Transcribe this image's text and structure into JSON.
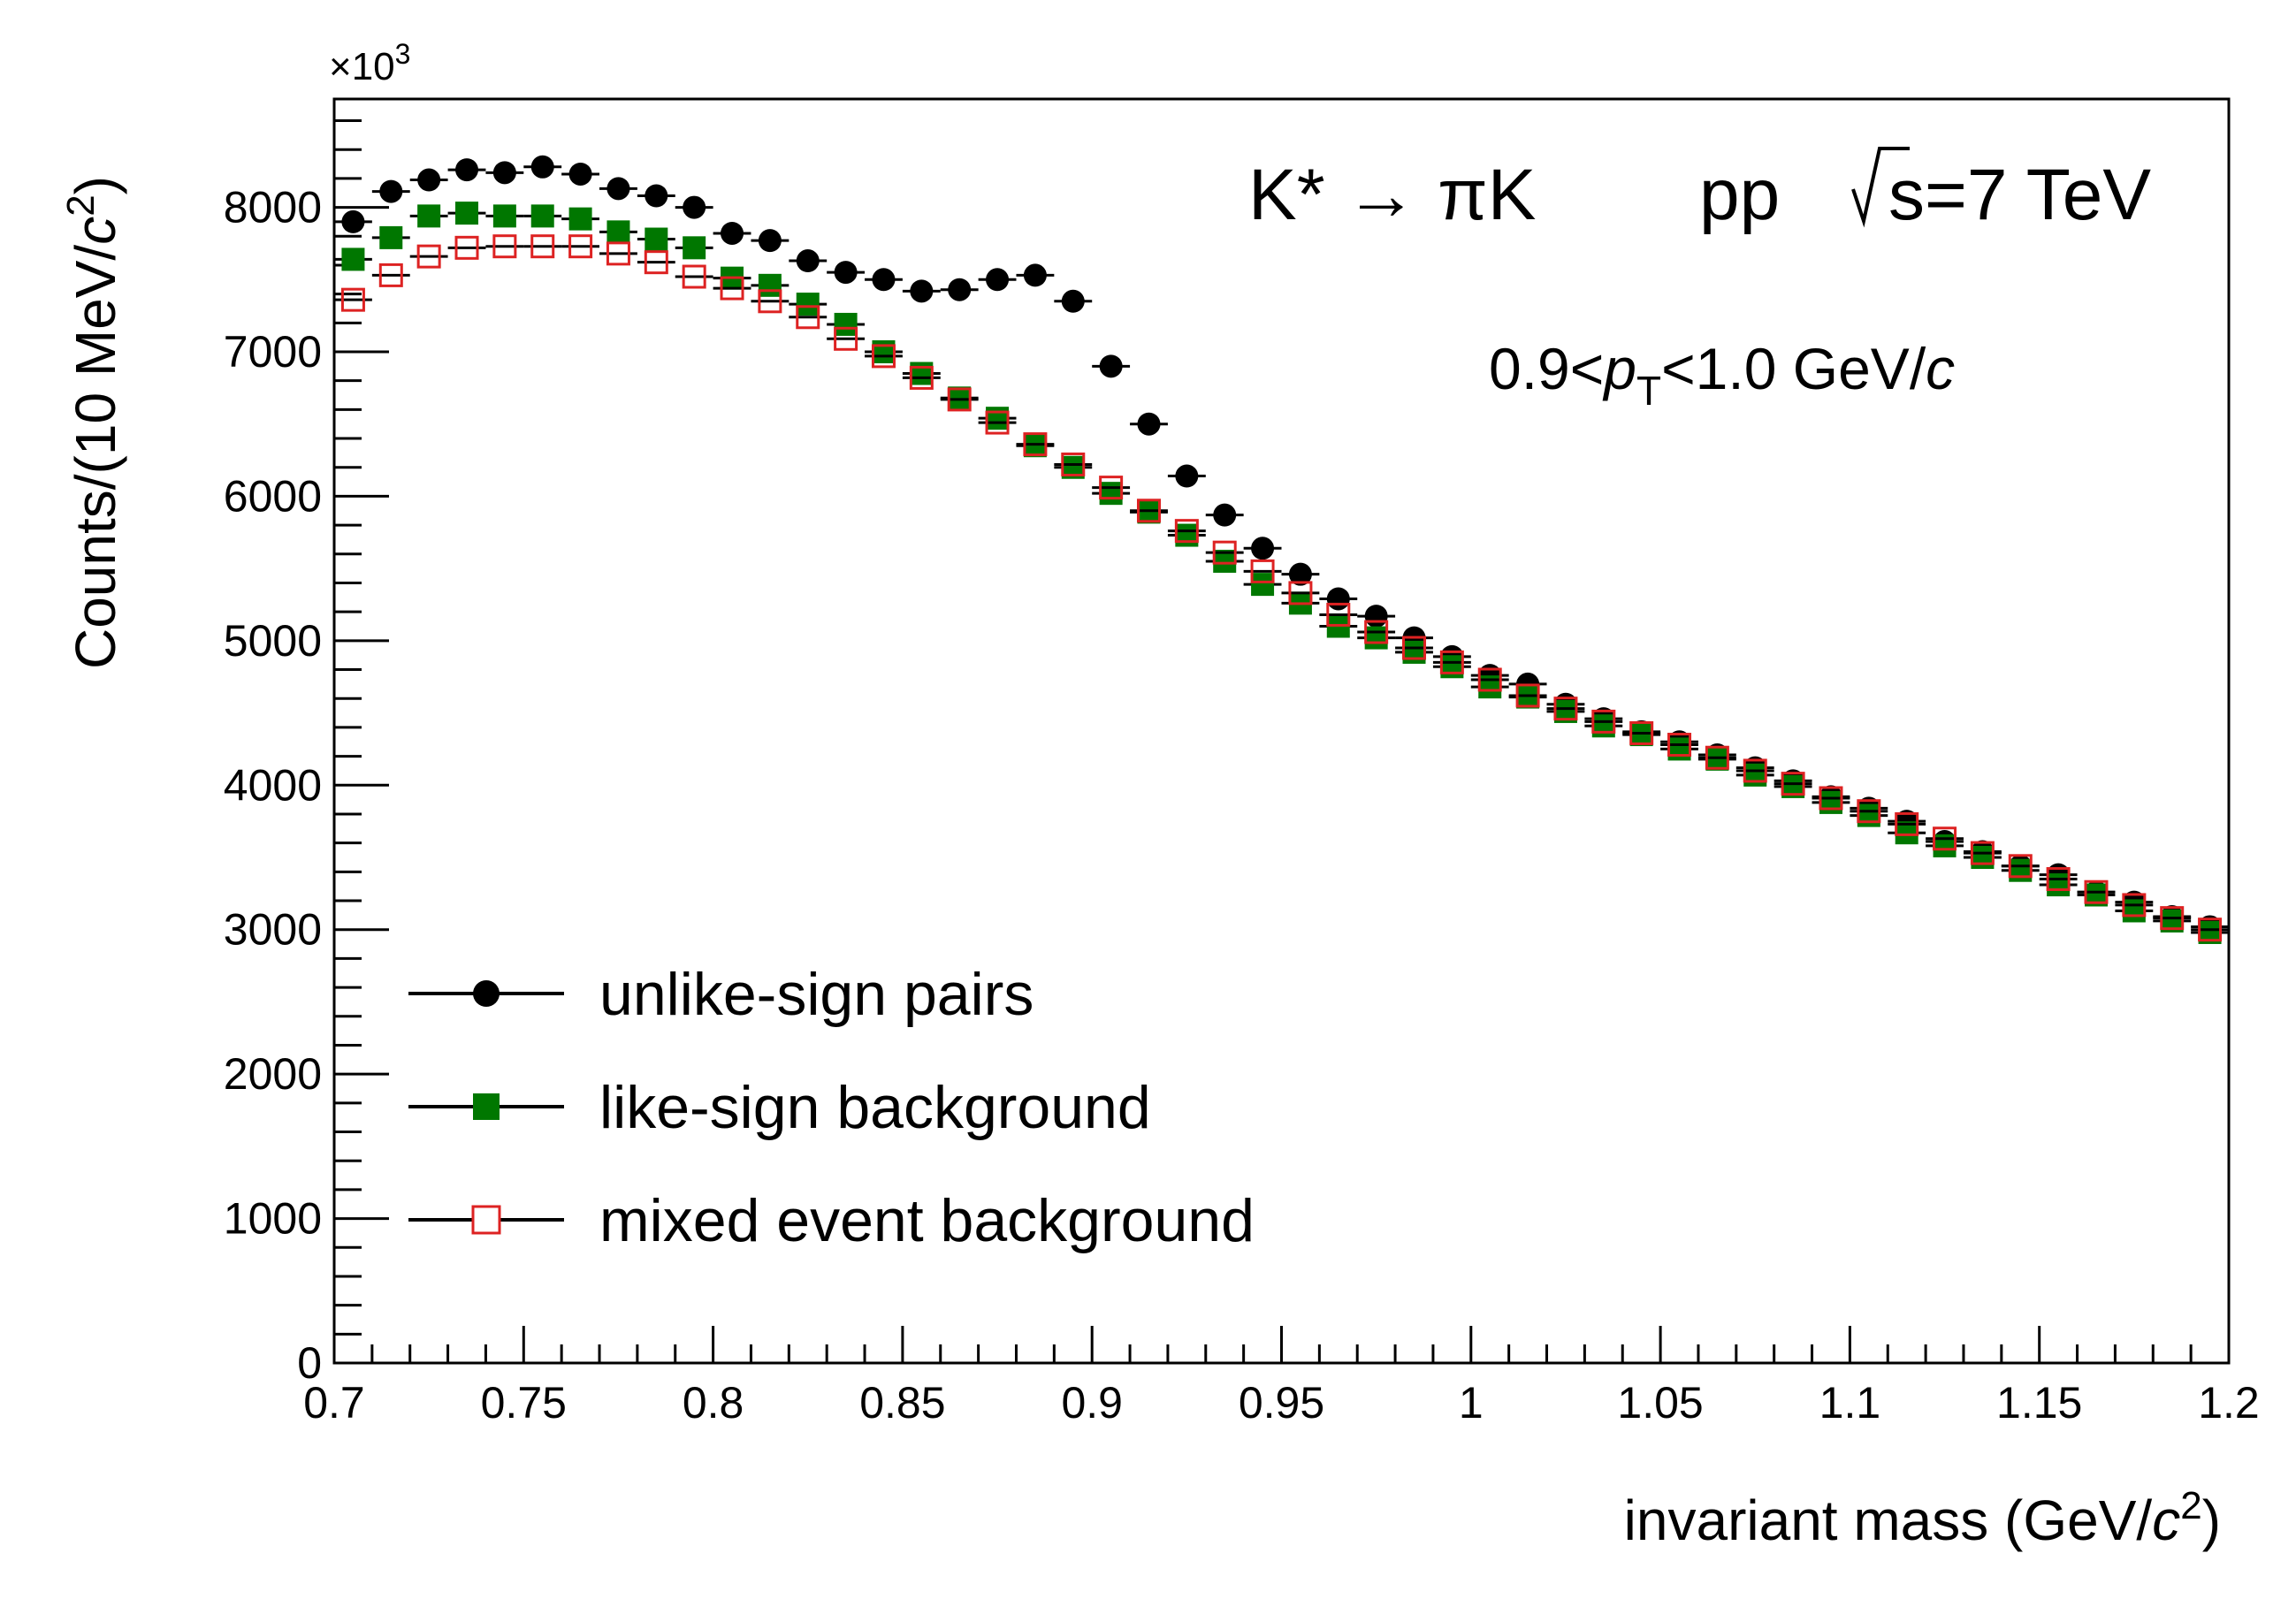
{
  "chart_data": {
    "type": "scatter",
    "title_process": "K* → πK",
    "title_system": "pp",
    "title_energy": "s=7 TeV",
    "pt_range": {
      "low": "0.9",
      "var": "p",
      "sub": "T",
      "high": "1.0 GeV/",
      "unit_c": "c"
    },
    "xlabel": {
      "main": "invariant mass (GeV/",
      "c": "c",
      "exp": "2",
      "close": ")"
    },
    "ylabel": {
      "main": "Counts/(10 MeV/",
      "c": "c",
      "exp": "2",
      "close": ")"
    },
    "y_multiplier": {
      "base": "×10",
      "exp": "3"
    },
    "xlim": [
      0.7,
      1.2
    ],
    "ylim": [
      0,
      8750
    ],
    "x_ticks": [
      0.7,
      0.75,
      0.8,
      0.85,
      0.9,
      0.95,
      1,
      1.05,
      1.1,
      1.15,
      1.2
    ],
    "x_tick_labels": [
      "0.7",
      "0.75",
      "0.8",
      "0.85",
      "0.9",
      "0.95",
      "1",
      "1.05",
      "1.1",
      "1.15",
      "1.2"
    ],
    "y_ticks": [
      0,
      1000,
      2000,
      3000,
      4000,
      5000,
      6000,
      7000,
      8000
    ],
    "y_tick_labels": [
      "0",
      "1000",
      "2000",
      "3000",
      "4000",
      "5000",
      "6000",
      "7000",
      "8000"
    ],
    "x": [
      0.705,
      0.715,
      0.725,
      0.735,
      0.745,
      0.755,
      0.765,
      0.775,
      0.785,
      0.795,
      0.805,
      0.815,
      0.825,
      0.835,
      0.845,
      0.855,
      0.865,
      0.875,
      0.885,
      0.895,
      0.905,
      0.915,
      0.925,
      0.935,
      0.945,
      0.955,
      0.965,
      0.975,
      0.985,
      0.995,
      1.005,
      1.015,
      1.025,
      1.035,
      1.045,
      1.055,
      1.065,
      1.075,
      1.085,
      1.095,
      1.105,
      1.115,
      1.125,
      1.135,
      1.145,
      1.155,
      1.165,
      1.175,
      1.185,
      1.195
    ],
    "series": [
      {
        "name": "unlike-sign pairs",
        "marker": "filled-circle",
        "color": "#000000",
        "values": [
          7900,
          8110,
          8190,
          8260,
          8240,
          8280,
          8230,
          8130,
          8080,
          8000,
          7820,
          7770,
          7630,
          7550,
          7500,
          7420,
          7430,
          7500,
          7530,
          7350,
          6900,
          6500,
          6140,
          5870,
          5640,
          5460,
          5290,
          5170,
          5020,
          4890,
          4760,
          4700,
          4560,
          4460,
          4370,
          4300,
          4210,
          4120,
          4030,
          3920,
          3840,
          3750,
          3610,
          3540,
          3440,
          3380,
          3260,
          3190,
          3090,
          3020
        ]
      },
      {
        "name": "like-sign background",
        "marker": "filled-square",
        "color": "#007700",
        "values": [
          7640,
          7790,
          7940,
          7960,
          7940,
          7940,
          7920,
          7830,
          7780,
          7720,
          7510,
          7460,
          7330,
          7190,
          7000,
          6850,
          6680,
          6540,
          6350,
          6200,
          6020,
          5890,
          5730,
          5550,
          5390,
          5260,
          5100,
          5020,
          4920,
          4820,
          4680,
          4610,
          4510,
          4410,
          4350,
          4250,
          4180,
          4070,
          3990,
          3880,
          3790,
          3670,
          3580,
          3500,
          3410,
          3310,
          3240,
          3130,
          3060,
          2980
        ]
      },
      {
        "name": "mixed event background",
        "marker": "open-square",
        "color": "#dd2222",
        "values": [
          7360,
          7530,
          7660,
          7720,
          7730,
          7730,
          7730,
          7680,
          7620,
          7520,
          7440,
          7350,
          7240,
          7090,
          6970,
          6820,
          6670,
          6510,
          6360,
          6220,
          6060,
          5900,
          5760,
          5610,
          5480,
          5330,
          5180,
          5060,
          4950,
          4850,
          4730,
          4620,
          4530,
          4440,
          4360,
          4280,
          4190,
          4100,
          4010,
          3910,
          3820,
          3730,
          3630,
          3530,
          3440,
          3350,
          3260,
          3170,
          3080,
          3000
        ]
      }
    ],
    "legend_position": "lower-left"
  }
}
